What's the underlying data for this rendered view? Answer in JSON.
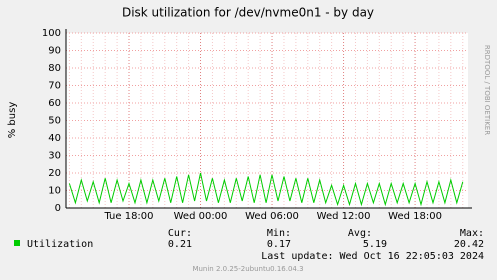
{
  "chart_data": {
    "type": "line",
    "title": "Disk utilization for /dev/nvme0n1 - by day",
    "y_label": "% busy",
    "side_note": "RRDTOOL / TOBI OETIKER",
    "categories": [
      null,
      null,
      null,
      null,
      null,
      null,
      null,
      null,
      null,
      null,
      "Tue 18:00",
      null,
      null,
      null,
      null,
      null,
      null,
      null,
      null,
      null,
      null,
      null,
      "Wed 00:00",
      null,
      null,
      null,
      null,
      null,
      null,
      null,
      null,
      null,
      null,
      null,
      "Wed 06:00",
      null,
      null,
      null,
      null,
      null,
      null,
      null,
      null,
      null,
      null,
      null,
      "Wed 12:00",
      null,
      null,
      null,
      null,
      null,
      null,
      null,
      null,
      null,
      null,
      null,
      "Wed 18:00",
      null,
      null,
      null,
      null,
      null,
      null,
      null,
      null
    ],
    "series": [
      {
        "name": "Utilization",
        "color": "#00cc00",
        "values": [
          14,
          3,
          16,
          4,
          15,
          3,
          17,
          3,
          16,
          4,
          14,
          3,
          16,
          3,
          16,
          4,
          17,
          3,
          18,
          3,
          19,
          4,
          20,
          4,
          17,
          3,
          16,
          3,
          17,
          4,
          18,
          3,
          19,
          3,
          19,
          4,
          18,
          4,
          17,
          3,
          17,
          3,
          16,
          3,
          13,
          2,
          13,
          2,
          14,
          2,
          14,
          3,
          14,
          2,
          14,
          3,
          14,
          3,
          14,
          2,
          15,
          3,
          15,
          3,
          16,
          3,
          15
        ]
      }
    ],
    "ylim": [
      0,
      100
    ],
    "yticks": [
      0,
      10,
      20,
      30,
      40,
      50,
      60,
      70,
      80,
      90,
      100
    ],
    "grid": true,
    "legend_table": {
      "headers": [
        "Cur:",
        "Min:",
        "Avg:",
        "Max:"
      ],
      "values": [
        0.21,
        0.17,
        5.19,
        20.42
      ]
    },
    "last_update": "Last update: Wed Oct 16 22:05:03 2024",
    "footer": "Munin 2.0.25-2ubuntu0.16.04.3"
  }
}
